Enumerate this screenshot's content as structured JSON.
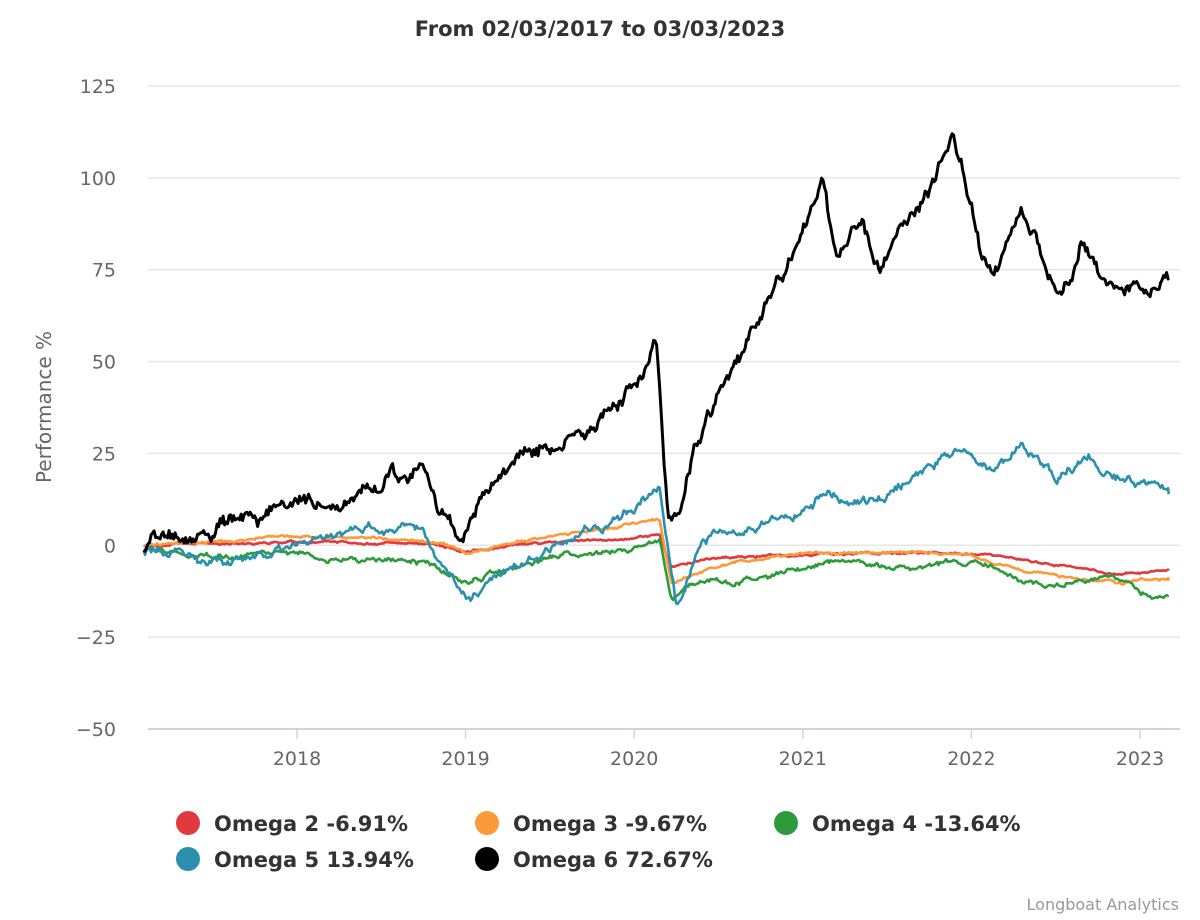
{
  "chart_data": {
    "type": "line",
    "title": "From 02/03/2017 to 03/03/2023",
    "xlabel": "",
    "ylabel": "Performance %",
    "xlim": [
      2017.09,
      2023.17
    ],
    "ylim": [
      -50,
      125
    ],
    "yticks": [
      125,
      100,
      75,
      50,
      25,
      0,
      -25,
      -50
    ],
    "ytick_labels": [
      "125",
      "100",
      "75",
      "50",
      "25",
      "0",
      "−25",
      "−50"
    ],
    "xticks": [
      2018,
      2019,
      2020,
      2021,
      2022,
      2023
    ],
    "xtick_labels": [
      "2018",
      "2019",
      "2020",
      "2021",
      "2022",
      "2023"
    ],
    "grid": true,
    "legend_position": "bottom",
    "credits": "Longboat Analytics",
    "series": [
      {
        "name": "Omega 2",
        "legend_label": "Omega 2 -6.91%",
        "final_value": -6.91,
        "color": "#e0393e",
        "points": [
          [
            2017.09,
            0
          ],
          [
            2017.5,
            0.5
          ],
          [
            2018.0,
            1
          ],
          [
            2018.5,
            0.5
          ],
          [
            2018.8,
            0.5
          ],
          [
            2019.0,
            -2
          ],
          [
            2019.3,
            0
          ],
          [
            2019.6,
            1
          ],
          [
            2020.0,
            2
          ],
          [
            2020.15,
            3
          ],
          [
            2020.22,
            -6
          ],
          [
            2020.4,
            -4
          ],
          [
            2020.7,
            -3
          ],
          [
            2021.0,
            -2.5
          ],
          [
            2021.5,
            -2
          ],
          [
            2021.8,
            -2
          ],
          [
            2022.0,
            -2.5
          ],
          [
            2022.3,
            -4
          ],
          [
            2022.6,
            -6
          ],
          [
            2022.9,
            -8
          ],
          [
            2023.17,
            -6.91
          ]
        ]
      },
      {
        "name": "Omega 3",
        "legend_label": "Omega 3 -9.67%",
        "final_value": -9.67,
        "color": "#fb9a3a",
        "points": [
          [
            2017.09,
            0
          ],
          [
            2017.5,
            1
          ],
          [
            2018.0,
            2.5
          ],
          [
            2018.5,
            2
          ],
          [
            2018.8,
            1
          ],
          [
            2019.0,
            -2
          ],
          [
            2019.3,
            1
          ],
          [
            2019.6,
            3
          ],
          [
            2020.0,
            6
          ],
          [
            2020.15,
            7
          ],
          [
            2020.22,
            -10
          ],
          [
            2020.4,
            -7
          ],
          [
            2020.7,
            -4
          ],
          [
            2021.0,
            -2
          ],
          [
            2021.5,
            -2
          ],
          [
            2021.8,
            -2
          ],
          [
            2022.0,
            -3
          ],
          [
            2022.3,
            -7
          ],
          [
            2022.6,
            -9
          ],
          [
            2022.9,
            -11
          ],
          [
            2023.0,
            -9
          ],
          [
            2023.17,
            -9.67
          ]
        ]
      },
      {
        "name": "Omega 4",
        "legend_label": "Omega 4 -13.64%",
        "final_value": -13.64,
        "color": "#2e9a3c",
        "points": [
          [
            2017.09,
            -1
          ],
          [
            2017.5,
            -3
          ],
          [
            2018.0,
            -2
          ],
          [
            2018.2,
            -4
          ],
          [
            2018.5,
            -4
          ],
          [
            2018.8,
            -5
          ],
          [
            2019.0,
            -10
          ],
          [
            2019.3,
            -6
          ],
          [
            2019.6,
            -3
          ],
          [
            2020.0,
            -1
          ],
          [
            2020.15,
            2
          ],
          [
            2020.22,
            -14
          ],
          [
            2020.4,
            -9
          ],
          [
            2020.7,
            -10
          ],
          [
            2021.0,
            -6
          ],
          [
            2021.2,
            -4
          ],
          [
            2021.5,
            -6
          ],
          [
            2021.8,
            -5
          ],
          [
            2022.0,
            -5
          ],
          [
            2022.3,
            -9
          ],
          [
            2022.5,
            -11
          ],
          [
            2022.8,
            -9
          ],
          [
            2022.95,
            -10
          ],
          [
            2023.0,
            -13
          ],
          [
            2023.17,
            -13.64
          ]
        ]
      },
      {
        "name": "Omega 5",
        "legend_label": "Omega 5 13.94%",
        "final_value": 13.94,
        "color": "#2a90ad",
        "points": [
          [
            2017.09,
            -1
          ],
          [
            2017.3,
            -3
          ],
          [
            2017.6,
            -5
          ],
          [
            2017.9,
            -2
          ],
          [
            2018.1,
            2
          ],
          [
            2018.3,
            3
          ],
          [
            2018.5,
            4
          ],
          [
            2018.75,
            4
          ],
          [
            2018.8,
            -2
          ],
          [
            2019.0,
            -14
          ],
          [
            2019.2,
            -8
          ],
          [
            2019.4,
            -3
          ],
          [
            2019.6,
            3
          ],
          [
            2019.8,
            4
          ],
          [
            2020.0,
            10
          ],
          [
            2020.15,
            16
          ],
          [
            2020.25,
            -17
          ],
          [
            2020.4,
            2
          ],
          [
            2020.7,
            5
          ],
          [
            2021.0,
            9
          ],
          [
            2021.15,
            15
          ],
          [
            2021.3,
            12
          ],
          [
            2021.5,
            14
          ],
          [
            2021.7,
            20
          ],
          [
            2021.9,
            26
          ],
          [
            2022.0,
            25
          ],
          [
            2022.1,
            20
          ],
          [
            2022.3,
            27
          ],
          [
            2022.5,
            18
          ],
          [
            2022.7,
            24
          ],
          [
            2022.8,
            19
          ],
          [
            2023.0,
            16
          ],
          [
            2023.17,
            13.94
          ]
        ]
      },
      {
        "name": "Omega 6",
        "legend_label": "Omega 6 72.67%",
        "final_value": 72.67,
        "color": "#000000",
        "points": [
          [
            2017.09,
            0
          ],
          [
            2017.3,
            1
          ],
          [
            2017.5,
            2
          ],
          [
            2017.7,
            8
          ],
          [
            2017.9,
            10
          ],
          [
            2018.0,
            12
          ],
          [
            2018.2,
            10
          ],
          [
            2018.4,
            16
          ],
          [
            2018.6,
            18
          ],
          [
            2018.75,
            20
          ],
          [
            2018.85,
            8
          ],
          [
            2018.98,
            -1
          ],
          [
            2019.1,
            12
          ],
          [
            2019.3,
            22
          ],
          [
            2019.5,
            26
          ],
          [
            2019.7,
            32
          ],
          [
            2019.9,
            38
          ],
          [
            2020.05,
            46
          ],
          [
            2020.13,
            55
          ],
          [
            2020.2,
            5
          ],
          [
            2020.27,
            8
          ],
          [
            2020.35,
            25
          ],
          [
            2020.5,
            40
          ],
          [
            2020.7,
            58
          ],
          [
            2020.9,
            75
          ],
          [
            2021.0,
            82
          ],
          [
            2021.12,
            102
          ],
          [
            2021.2,
            80
          ],
          [
            2021.35,
            88
          ],
          [
            2021.45,
            75
          ],
          [
            2021.6,
            88
          ],
          [
            2021.75,
            98
          ],
          [
            2021.88,
            112
          ],
          [
            2021.95,
            102
          ],
          [
            2022.05,
            80
          ],
          [
            2022.15,
            75
          ],
          [
            2022.3,
            90
          ],
          [
            2022.4,
            80
          ],
          [
            2022.5,
            68
          ],
          [
            2022.6,
            75
          ],
          [
            2022.65,
            84
          ],
          [
            2022.8,
            70
          ],
          [
            2022.95,
            72
          ],
          [
            2023.05,
            68
          ],
          [
            2023.17,
            72.67
          ]
        ]
      }
    ]
  }
}
